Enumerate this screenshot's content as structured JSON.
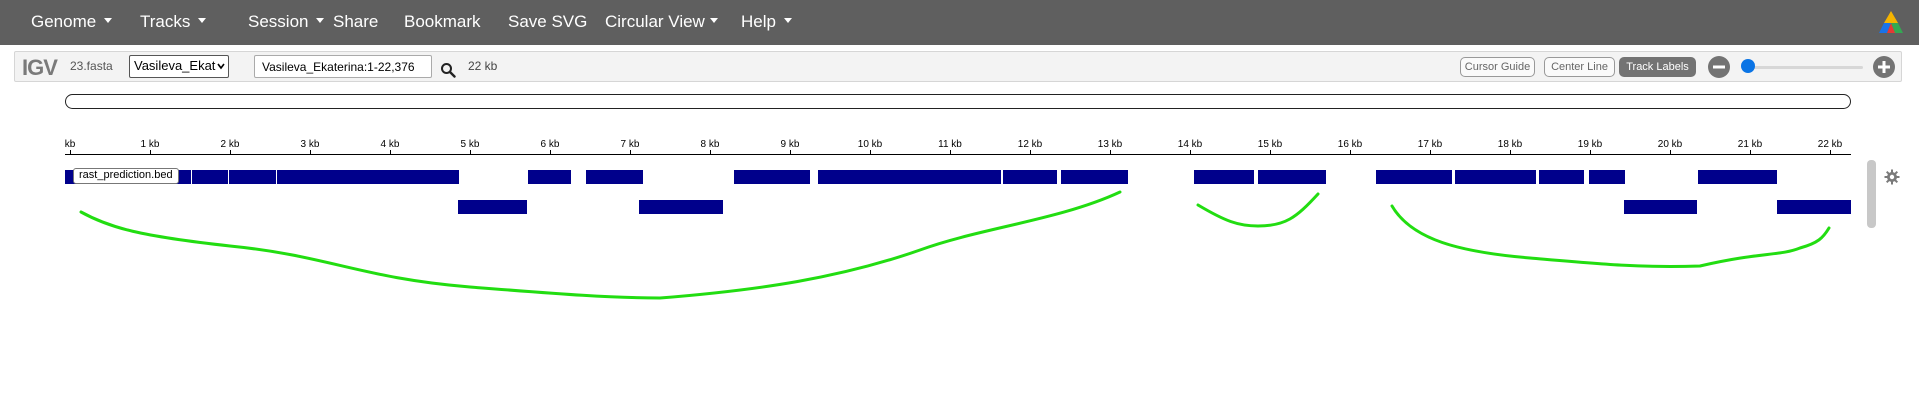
{
  "navbar": {
    "items": [
      {
        "label": "Genome",
        "dropdown": true
      },
      {
        "label": "Tracks",
        "dropdown": true
      },
      {
        "label": "Session",
        "dropdown": true
      },
      {
        "label": "Share",
        "dropdown": false
      },
      {
        "label": "Bookmark",
        "dropdown": false
      },
      {
        "label": "Save SVG",
        "dropdown": false
      },
      {
        "label": "Circular View",
        "dropdown": true
      },
      {
        "label": "Help",
        "dropdown": true
      }
    ]
  },
  "igv": {
    "logo": "IGV",
    "genome_file": "23.fasta",
    "chromosome_selected": "Vasileva_Ekat",
    "locus": "Vasileva_Ekaterina:1-22,376",
    "window_size": "22 kb",
    "buttons": {
      "cursor_guide": "Cursor Guide",
      "center_line": "Center Line",
      "track_labels": "Track Labels"
    }
  },
  "ruler": {
    "ticks": [
      "kb",
      "1 kb",
      "2 kb",
      "3 kb",
      "4 kb",
      "5 kb",
      "6 kb",
      "7 kb",
      "8 kb",
      "9 kb",
      "10 kb",
      "11 kb",
      "12 kb",
      "13 kb",
      "14 kb",
      "15 kb",
      "16 kb",
      "17 kb",
      "18 kb",
      "19 kb",
      "20 kb",
      "21 kb",
      "22 kb"
    ]
  },
  "track": {
    "name": "rast_prediction.bed"
  },
  "colors": {
    "navbar": "#5f5f5f",
    "feature": "#00008b",
    "annotation": "#22dd11",
    "zoom_thumb": "#0a74e5"
  }
}
